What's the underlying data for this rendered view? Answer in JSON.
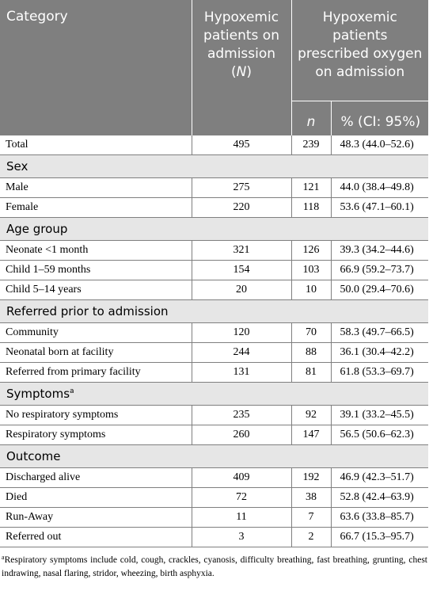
{
  "header": {
    "category": "Category",
    "hypoxemic": "Hypoxemic patients on admission (",
    "hypoxemic_n": "N",
    "hypoxemic_close": ")",
    "oxygen": "Hypoxemic patients prescribed oxygen on admission",
    "n": "n",
    "pct": "% (CI: 95%)"
  },
  "total": {
    "label": "Total",
    "N": "495",
    "n": "239",
    "pct": "48.3 (44.0–52.6)"
  },
  "sections": {
    "sex": "Sex",
    "age": "Age group",
    "referred": "Referred prior to admission",
    "symptoms": "Symptoms",
    "symptoms_mark": "a",
    "outcome": "Outcome"
  },
  "rows": {
    "sex": [
      {
        "label": "Male",
        "N": "275",
        "n": "121",
        "pct": "44.0 (38.4–49.8)"
      },
      {
        "label": "Female",
        "N": "220",
        "n": "118",
        "pct": "53.6 (47.1–60.1)"
      }
    ],
    "age": [
      {
        "label": "Neonate <1 month",
        "N": "321",
        "n": "126",
        "pct": "39.3 (34.2–44.6)"
      },
      {
        "label": "Child 1–59 months",
        "N": "154",
        "n": "103",
        "pct": "66.9 (59.2–73.7)"
      },
      {
        "label": "Child 5–14 years",
        "N": "20",
        "n": "10",
        "pct": "50.0 (29.4–70.6)"
      }
    ],
    "referred": [
      {
        "label": "Community",
        "N": "120",
        "n": "70",
        "pct": "58.3 (49.7–66.5)"
      },
      {
        "label": "Neonatal born at facility",
        "N": "244",
        "n": "88",
        "pct": "36.1 (30.4–42.2)"
      },
      {
        "label": "Referred from primary facility",
        "N": "131",
        "n": "81",
        "pct": "61.8 (53.3–69.7)"
      }
    ],
    "symptoms": [
      {
        "label": "No respiratory symptoms",
        "N": "235",
        "n": "92",
        "pct": "39.1 (33.2–45.5)"
      },
      {
        "label": "Respiratory symptoms",
        "N": "260",
        "n": "147",
        "pct": "56.5 (50.6–62.3)"
      }
    ],
    "outcome": [
      {
        "label": "Discharged alive",
        "N": "409",
        "n": "192",
        "pct": "46.9 (42.3–51.7)"
      },
      {
        "label": "Died",
        "N": "72",
        "n": "38",
        "pct": "52.8 (42.4–63.9)"
      },
      {
        "label": "Run-Away",
        "N": "11",
        "n": "7",
        "pct": "63.6 (33.8–85.7)"
      },
      {
        "label": "Referred out",
        "N": "3",
        "n": "2",
        "pct": "66.7 (15.3–95.7)"
      }
    ]
  },
  "footnote": {
    "mark": "a",
    "text": "Respiratory symptoms include cold, cough, crackles, cyanosis, difficulty breathing, fast breathing, grunting, chest indrawing, nasal flaring, stridor, wheezing, birth asphyxia."
  }
}
